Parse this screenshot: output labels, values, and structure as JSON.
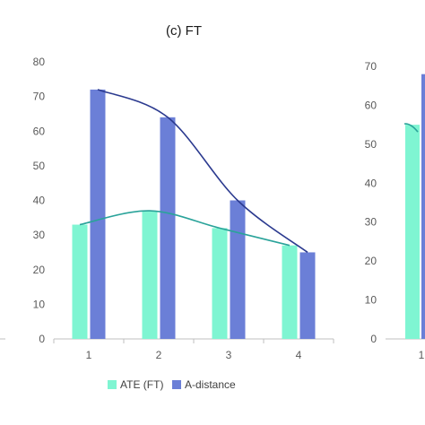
{
  "chart_data": [
    {
      "type": "bar",
      "title": "(c) FT",
      "categories": [
        "1",
        "2",
        "3",
        "4"
      ],
      "series": [
        {
          "name": "ATE (FT)",
          "values": [
            33,
            37,
            32,
            27
          ],
          "color": "#7ff5d2"
        },
        {
          "name": "A-distance",
          "values": [
            72,
            64,
            40,
            25
          ],
          "color": "#6b7fd7"
        }
      ],
      "trendlines": [
        {
          "series": "ATE (FT)",
          "color": "#2aa39a"
        },
        {
          "series": "A-distance",
          "color": "#2b3a8f"
        }
      ],
      "ylim": [
        0,
        80
      ],
      "yticks": [
        0,
        10,
        20,
        30,
        40,
        50,
        60,
        70,
        80
      ],
      "legend_position": "bottom"
    },
    {
      "type": "bar",
      "partial": true,
      "categories": [
        "1"
      ],
      "series": [
        {
          "name": "ATE (FT)",
          "values": [
            55
          ],
          "color": "#7ff5d2"
        },
        {
          "name": "A-distance",
          "values": [
            68
          ],
          "color": "#6b7fd7"
        }
      ],
      "ylim": [
        0,
        70
      ],
      "yticks": [
        0,
        10,
        20,
        30,
        40,
        50,
        60,
        70
      ]
    }
  ]
}
